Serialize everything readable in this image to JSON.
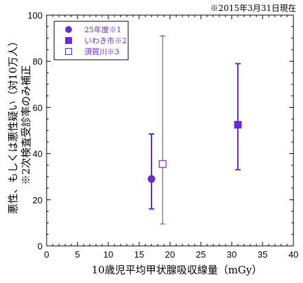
{
  "note": "※2015年3月31日現在",
  "colors": {
    "series": "#6a2ad1",
    "axis": "#000000"
  },
  "chart_data": {
    "type": "scatter",
    "title": "",
    "xlabel": "10歳児平均甲状腺吸収線量（mGy）",
    "ylabel_lines": [
      "悪性、もしくは悪性疑い（対10万人）",
      "※2次検査受診率のみ補正"
    ],
    "xlim": [
      0,
      40
    ],
    "ylim": [
      0,
      100
    ],
    "x_ticks": [
      0,
      5,
      10,
      15,
      20,
      25,
      30,
      35,
      40
    ],
    "y_ticks": [
      0,
      20,
      40,
      60,
      80,
      100
    ],
    "grid": false,
    "legend_position": "top-left",
    "series": [
      {
        "name": "25年度※1",
        "marker": "filled-circle",
        "x": 17.0,
        "y": 29,
        "y_low": 16,
        "y_high": 48.5
      },
      {
        "name": "いわき市※2",
        "marker": "filled-square",
        "x": 31.0,
        "y": 52.5,
        "y_low": 33,
        "y_high": 79
      },
      {
        "name": "須賀川※3",
        "marker": "open-square",
        "x": 18.8,
        "y": 35.5,
        "y_low": 9.5,
        "y_high": 91
      }
    ]
  }
}
